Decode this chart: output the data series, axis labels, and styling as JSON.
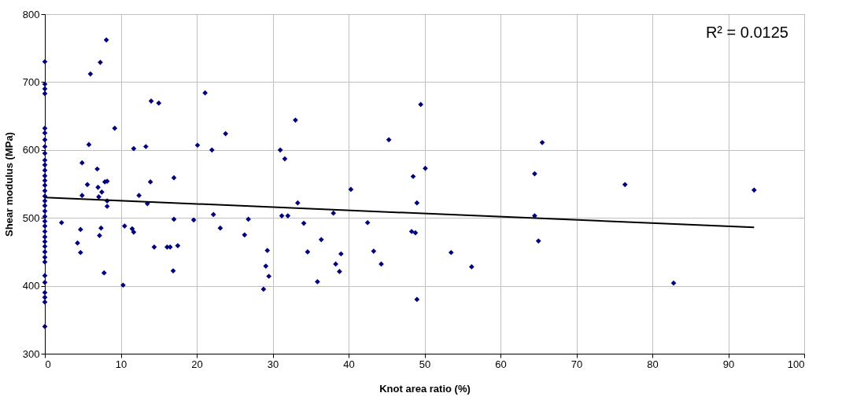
{
  "chart_data": {
    "type": "scatter",
    "xlabel": "Knot area ratio (%)",
    "ylabel": "Shear modulus (MPa)",
    "xlim": [
      0,
      100
    ],
    "xticks": [
      0,
      10,
      20,
      30,
      40,
      50,
      60,
      70,
      80,
      90,
      100
    ],
    "ylim": [
      300,
      800
    ],
    "yticks": [
      300,
      400,
      500,
      600,
      700,
      800
    ],
    "grid": true,
    "marker": "diamond",
    "annotations": [
      "R² = 0.0125"
    ],
    "series": [
      {
        "color": "#000080",
        "x": [
          0,
          0,
          0,
          0,
          0,
          0,
          0,
          0,
          0,
          0,
          0,
          0,
          0,
          0,
          0,
          0,
          0,
          0,
          0,
          0,
          0,
          0,
          0,
          0,
          0,
          0,
          0,
          0,
          0,
          0,
          0,
          0,
          0,
          0,
          0,
          0,
          2.2,
          4.3,
          4.7,
          4.7,
          4.9,
          4.9,
          5.6,
          5.8,
          6.0,
          6.9,
          7.0,
          7.1,
          7.3,
          7.2,
          7.4,
          7.5,
          7.8,
          7.9,
          8.1,
          8.2,
          8.2,
          8.2,
          9.2,
          10.3,
          10.5,
          11.5,
          11.7,
          11.7,
          12.4,
          13.3,
          13.5,
          13.9,
          14.0,
          14.4,
          15.0,
          16.1,
          16.5,
          16.9,
          17.0,
          17.0,
          17.5,
          19.6,
          20.1,
          21.1,
          22.0,
          22.2,
          23.1,
          23.8,
          26.3,
          26.8,
          28.8,
          29.1,
          29.3,
          29.5,
          31.0,
          31.2,
          31.6,
          32.0,
          33.0,
          33.3,
          34.1,
          34.6,
          35.9,
          36.4,
          38.0,
          38.3,
          38.8,
          39.0,
          40.3,
          42.5,
          43.3,
          44.3,
          45.3,
          48.3,
          48.5,
          48.8,
          49.0,
          49.0,
          49.5,
          50.1,
          53.5,
          56.2,
          64.5,
          64.5,
          65.0,
          65.5,
          76.4,
          82.8,
          93.4
        ],
        "values": [
          730,
          697,
          690,
          683,
          632,
          625,
          615,
          605,
          595,
          585,
          578,
          570,
          562,
          555,
          548,
          540,
          532,
          525,
          518,
          510,
          502,
          495,
          488,
          480,
          472,
          465,
          458,
          450,
          442,
          435,
          415,
          405,
          390,
          383,
          376,
          340,
          493,
          463,
          449,
          483,
          533,
          581,
          549,
          608,
          712,
          572,
          545,
          531,
          729,
          474,
          485,
          538,
          419,
          553,
          762,
          554,
          525,
          517,
          632,
          401,
          488,
          484,
          479,
          602,
          533,
          605,
          521,
          553,
          672,
          457,
          669,
          457,
          457,
          422,
          559,
          498,
          459,
          497,
          607,
          684,
          600,
          505,
          485,
          624,
          475,
          498,
          395,
          429,
          452,
          414,
          600,
          503,
          587,
          503,
          644,
          522,
          492,
          450,
          406,
          468,
          507,
          432,
          421,
          447,
          542,
          493,
          451,
          432,
          615,
          480,
          561,
          478,
          522,
          380,
          667,
          573,
          449,
          428,
          565,
          503,
          466,
          611,
          549,
          404,
          541
        ]
      },
      {
        "type": "line",
        "color": "#000000",
        "marker": "none",
        "x": [
          0,
          93.4
        ],
        "values": [
          530,
          486
        ]
      }
    ]
  }
}
